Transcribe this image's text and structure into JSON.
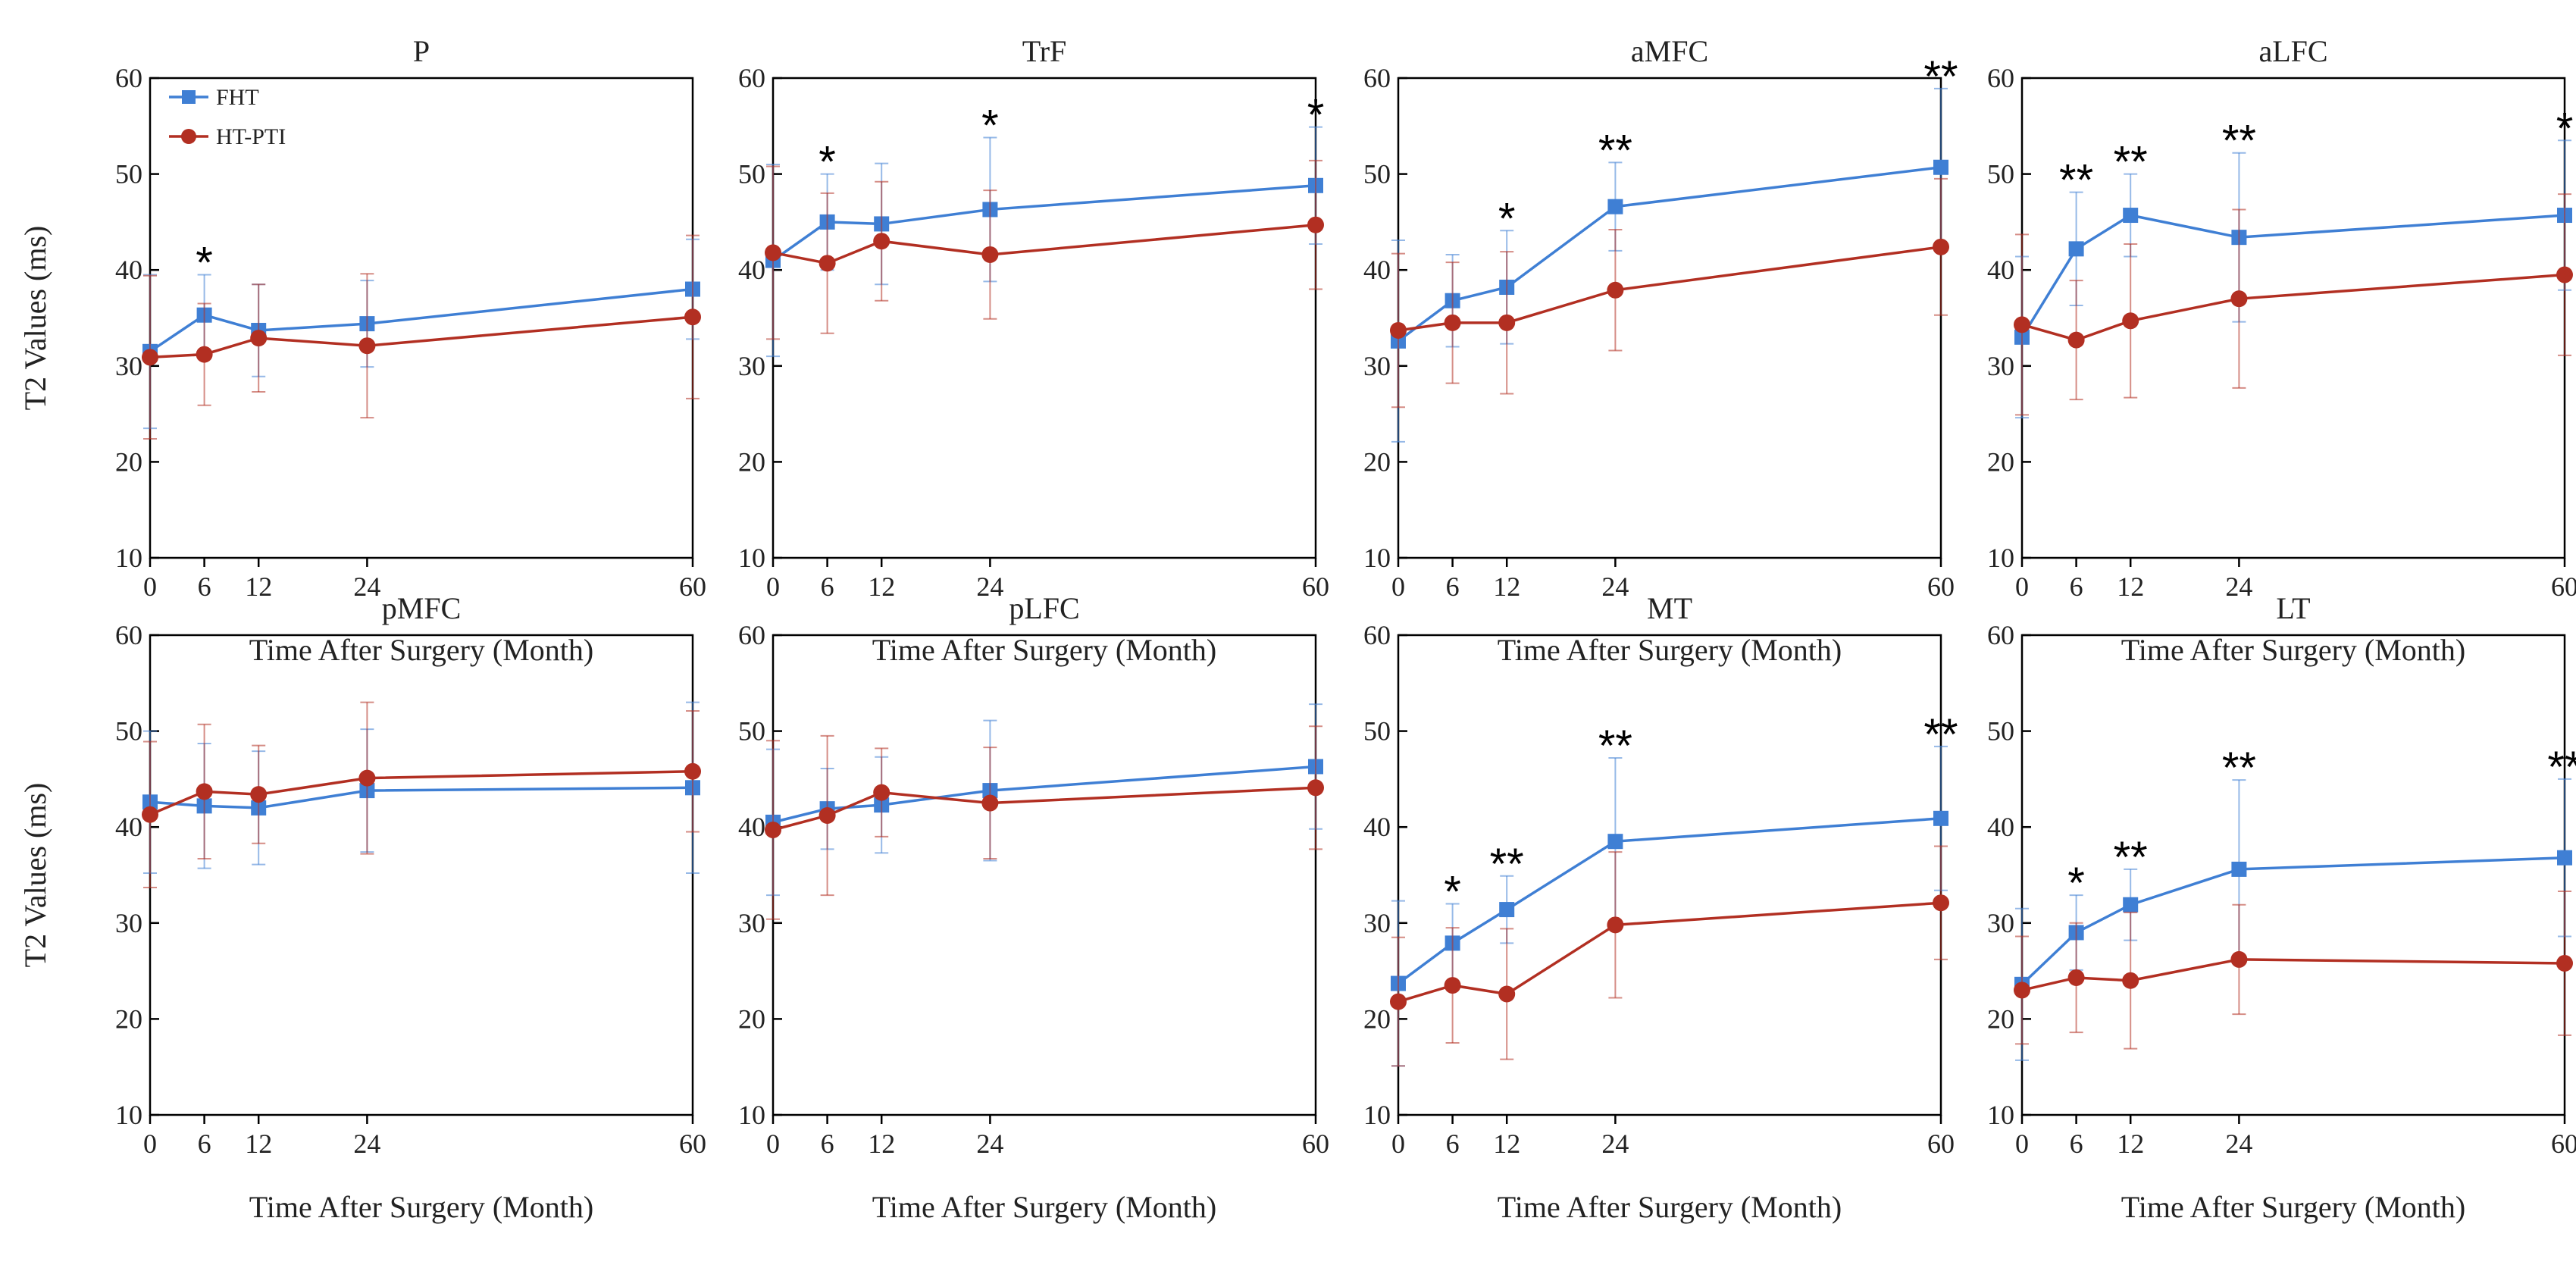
{
  "colors": {
    "FHT": "#3f7fd4",
    "HT-PTI": "#b22f22",
    "axis": "#000000"
  },
  "chart_data": {
    "type": "line",
    "legend": [
      "FHT",
      "HT-PTI"
    ],
    "legend_position": "top-left of first panel",
    "x": [
      0,
      6,
      12,
      24,
      60
    ],
    "x_ticks": [
      "0",
      "6",
      "12",
      "24",
      "60"
    ],
    "ylim": [
      10,
      60
    ],
    "y_ticks": [
      "10",
      "20",
      "30",
      "40",
      "50",
      "60"
    ],
    "ylabel": "T2 Values (ms)",
    "xlabel": "Time After Surgery (Month)",
    "panels": [
      {
        "title": "P",
        "series": [
          {
            "name": "FHT",
            "values": [
              31.5,
              35.3,
              33.7,
              34.4,
              38.0
            ],
            "err": [
              8.0,
              4.2,
              4.8,
              4.5,
              5.2
            ]
          },
          {
            "name": "HT-PTI",
            "values": [
              30.9,
              31.2,
              32.9,
              32.1,
              35.1
            ],
            "err": [
              8.5,
              5.3,
              5.6,
              7.5,
              8.5
            ]
          }
        ],
        "sig": [
          "",
          "*",
          "",
          "",
          ""
        ]
      },
      {
        "title": "TrF",
        "series": [
          {
            "name": "FHT",
            "values": [
              41.0,
              45.0,
              44.8,
              46.3,
              48.8
            ],
            "err": [
              10.0,
              5.0,
              6.3,
              7.5,
              6.1
            ]
          },
          {
            "name": "HT-PTI",
            "values": [
              41.8,
              40.7,
              43.0,
              41.6,
              44.7
            ],
            "err": [
              9.0,
              7.3,
              6.2,
              6.7,
              6.7
            ]
          }
        ],
        "sig": [
          "",
          "*",
          "",
          "*",
          "*"
        ]
      },
      {
        "title": "aMFC",
        "series": [
          {
            "name": "FHT",
            "values": [
              32.6,
              36.8,
              38.2,
              46.6,
              50.7
            ],
            "err": [
              10.5,
              4.8,
              5.9,
              4.6,
              8.2
            ]
          },
          {
            "name": "HT-PTI",
            "values": [
              33.7,
              34.5,
              34.5,
              37.9,
              42.4
            ],
            "err": [
              8.0,
              6.3,
              7.4,
              6.3,
              7.1
            ]
          }
        ],
        "sig": [
          "",
          "",
          "*",
          "**",
          "**"
        ]
      },
      {
        "title": "aLFC",
        "series": [
          {
            "name": "FHT",
            "values": [
              33.0,
              42.2,
              45.7,
              43.4,
              45.7
            ],
            "err": [
              8.4,
              5.9,
              4.3,
              8.8,
              7.8
            ]
          },
          {
            "name": "HT-PTI",
            "values": [
              34.3,
              32.7,
              34.7,
              37.0,
              39.5
            ],
            "err": [
              9.4,
              6.2,
              8.0,
              9.3,
              8.4
            ]
          }
        ],
        "sig": [
          "",
          "**",
          "**",
          "**",
          "*"
        ]
      },
      {
        "title": "pMFC",
        "series": [
          {
            "name": "FHT",
            "values": [
              42.6,
              42.2,
              42.0,
              43.8,
              44.1
            ],
            "err": [
              7.4,
              6.5,
              5.9,
              6.4,
              8.9
            ]
          },
          {
            "name": "HT-PTI",
            "values": [
              41.3,
              43.7,
              43.4,
              45.1,
              45.8
            ],
            "err": [
              7.6,
              7.0,
              5.1,
              7.9,
              6.3
            ]
          }
        ],
        "sig": [
          "",
          "",
          "",
          "",
          ""
        ]
      },
      {
        "title": "pLFC",
        "series": [
          {
            "name": "FHT",
            "values": [
              40.5,
              41.9,
              42.3,
              43.8,
              46.3
            ],
            "err": [
              7.6,
              4.2,
              5.0,
              7.3,
              6.5
            ]
          },
          {
            "name": "HT-PTI",
            "values": [
              39.7,
              41.2,
              43.6,
              42.5,
              44.1
            ],
            "err": [
              9.3,
              8.3,
              4.6,
              5.8,
              6.4
            ]
          }
        ],
        "sig": [
          "",
          "",
          "",
          "",
          ""
        ]
      },
      {
        "title": "MT",
        "series": [
          {
            "name": "FHT",
            "values": [
              23.7,
              27.9,
              31.4,
              38.5,
              40.9
            ],
            "err": [
              8.6,
              4.1,
              3.5,
              8.7,
              7.5
            ]
          },
          {
            "name": "HT-PTI",
            "values": [
              21.8,
              23.5,
              22.6,
              29.8,
              32.1
            ],
            "err": [
              6.7,
              6.0,
              6.8,
              7.6,
              5.9
            ]
          }
        ],
        "sig": [
          "",
          "*",
          "**",
          "**",
          "**"
        ]
      },
      {
        "title": "LT",
        "series": [
          {
            "name": "FHT",
            "values": [
              23.6,
              29.0,
              31.9,
              35.6,
              36.8
            ],
            "err": [
              7.9,
              3.9,
              3.7,
              9.3,
              8.2
            ]
          },
          {
            "name": "HT-PTI",
            "values": [
              23.0,
              24.3,
              24.0,
              26.2,
              25.8
            ],
            "err": [
              5.6,
              5.7,
              7.1,
              5.7,
              7.5
            ]
          }
        ],
        "sig": [
          "",
          "*",
          "**",
          "**",
          "**"
        ]
      }
    ]
  }
}
